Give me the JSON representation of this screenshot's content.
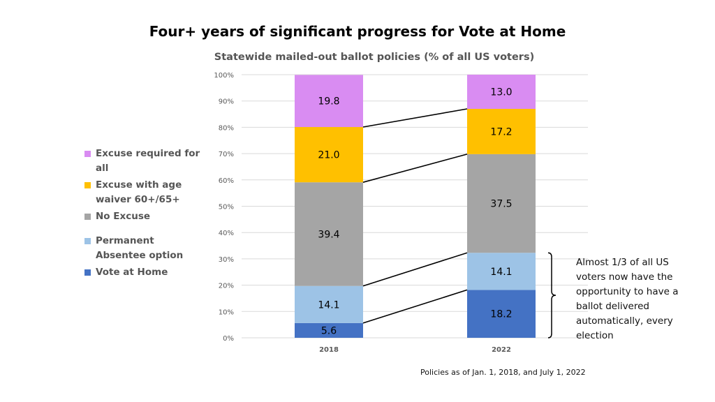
{
  "title": "Four+ years of significant progress for Vote at Home",
  "subtitle": "Statewide mailed-out ballot policies (% of all US voters)",
  "annotation": "Almost 1/3 of all US voters now have the opportunity to have a ballot delivered automatically, every election",
  "footnote": "Policies as of Jan. 1, 2018, and July 1, 2022",
  "chart_data": {
    "type": "bar",
    "stacked": true,
    "categories": [
      "2018",
      "2022"
    ],
    "series": [
      {
        "name": "Vote at Home",
        "values": [
          5.6,
          18.2
        ],
        "color": "#4472C4"
      },
      {
        "name": "Permanent Absentee option",
        "values": [
          14.1,
          14.1
        ],
        "color": "#9DC3E6"
      },
      {
        "name": "No Excuse",
        "values": [
          39.4,
          37.5
        ],
        "color": "#A5A5A5"
      },
      {
        "name": "Excuse with age waiver 60+/65+",
        "values": [
          21.0,
          17.2
        ],
        "color": "#FFC000"
      },
      {
        "name": "Excuse required for all",
        "values": [
          19.8,
          13.0
        ],
        "color": "#D98CF2"
      }
    ],
    "yticks": [
      "0%",
      "10%",
      "20%",
      "30%",
      "40%",
      "50%",
      "60%",
      "70%",
      "80%",
      "90%",
      "100%"
    ],
    "ylim": [
      0,
      100
    ],
    "grid": true,
    "legend_position": "left"
  }
}
